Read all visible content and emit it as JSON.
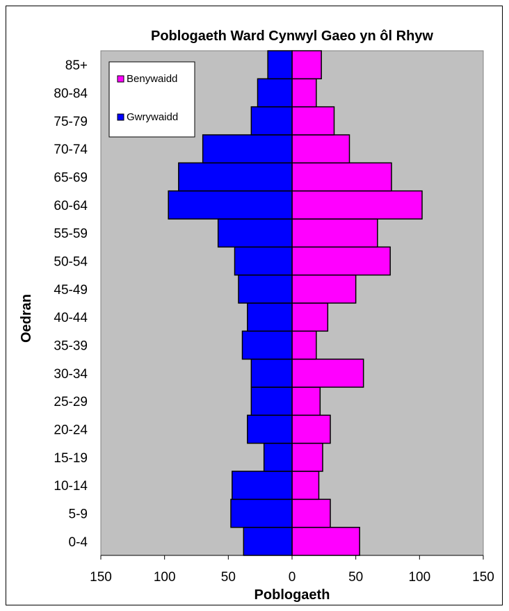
{
  "chart_data": {
    "type": "bar",
    "orientation": "horizontal",
    "layout": "population-pyramid",
    "title": "Poblogaeth Ward Cynwyl Gaeo yn ôl Rhyw",
    "xlabel": "Poblogaeth",
    "ylabel": "Oedran",
    "xlim": [
      -150,
      150
    ],
    "x_ticks": [
      "150",
      "100",
      "50",
      "0",
      "50",
      "100",
      "150"
    ],
    "categories": [
      "0-4",
      "5-9",
      "10-14",
      "15-19",
      "20-24",
      "25-29",
      "30-34",
      "35-39",
      "40-44",
      "45-49",
      "50-54",
      "55-59",
      "60-64",
      "65-69",
      "70-74",
      "75-79",
      "80-84",
      "85+"
    ],
    "series": [
      {
        "name": "Benywaidd",
        "color": "#FF00FF",
        "side": "right",
        "values": [
          53,
          30,
          21,
          24,
          30,
          22,
          56,
          19,
          28,
          50,
          77,
          67,
          102,
          78,
          45,
          33,
          19,
          23
        ]
      },
      {
        "name": "Gwrywaidd",
        "color": "#0000FF",
        "side": "left",
        "values": [
          38,
          48,
          47,
          22,
          35,
          32,
          32,
          39,
          35,
          42,
          45,
          58,
          97,
          89,
          70,
          32,
          27,
          19
        ]
      }
    ],
    "plot_background": "#C0C0C0",
    "grid": false,
    "legend_position": "top-left"
  }
}
